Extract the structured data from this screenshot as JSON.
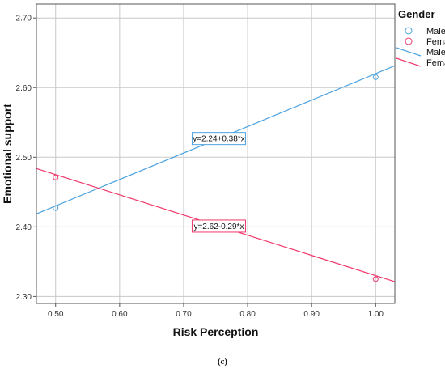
{
  "chart_data": {
    "type": "scatter",
    "xlabel": "Risk Perception",
    "ylabel": "Emotional support",
    "xlim": [
      0.47,
      1.03
    ],
    "ylim": [
      2.29,
      2.72
    ],
    "x_ticks": [
      "0.50",
      "0.60",
      "0.70",
      "0.80",
      "0.90",
      "1.00"
    ],
    "y_ticks": [
      "2.30",
      "2.40",
      "2.50",
      "2.60",
      "2.70"
    ],
    "grid": true,
    "series": [
      {
        "name": "Male",
        "color": "#4da3e0",
        "points": [
          [
            0.5,
            2.427
          ],
          [
            1.0,
            2.615
          ]
        ],
        "fit": {
          "intercept": 2.24,
          "slope": 0.38,
          "label": "y=2.24+0.38*x"
        }
      },
      {
        "name": "Female",
        "color": "#f0386b",
        "points": [
          [
            0.5,
            2.471
          ],
          [
            1.0,
            2.325
          ]
        ],
        "fit": {
          "intercept": 2.62,
          "slope": -0.29,
          "label": "y=2.62-0.29*x"
        }
      }
    ],
    "legend": {
      "title": "Gender",
      "position": "right",
      "entries": [
        {
          "label": "Male",
          "marker": "circle",
          "color": "#4da3e0"
        },
        {
          "label": "Female",
          "marker": "circle",
          "color": "#f0386b"
        },
        {
          "label": "Male",
          "marker": "line",
          "color": "#4da3e0"
        },
        {
          "label": "Female",
          "marker": "line",
          "color": "#f0386b"
        }
      ]
    }
  },
  "caption": "(c)"
}
